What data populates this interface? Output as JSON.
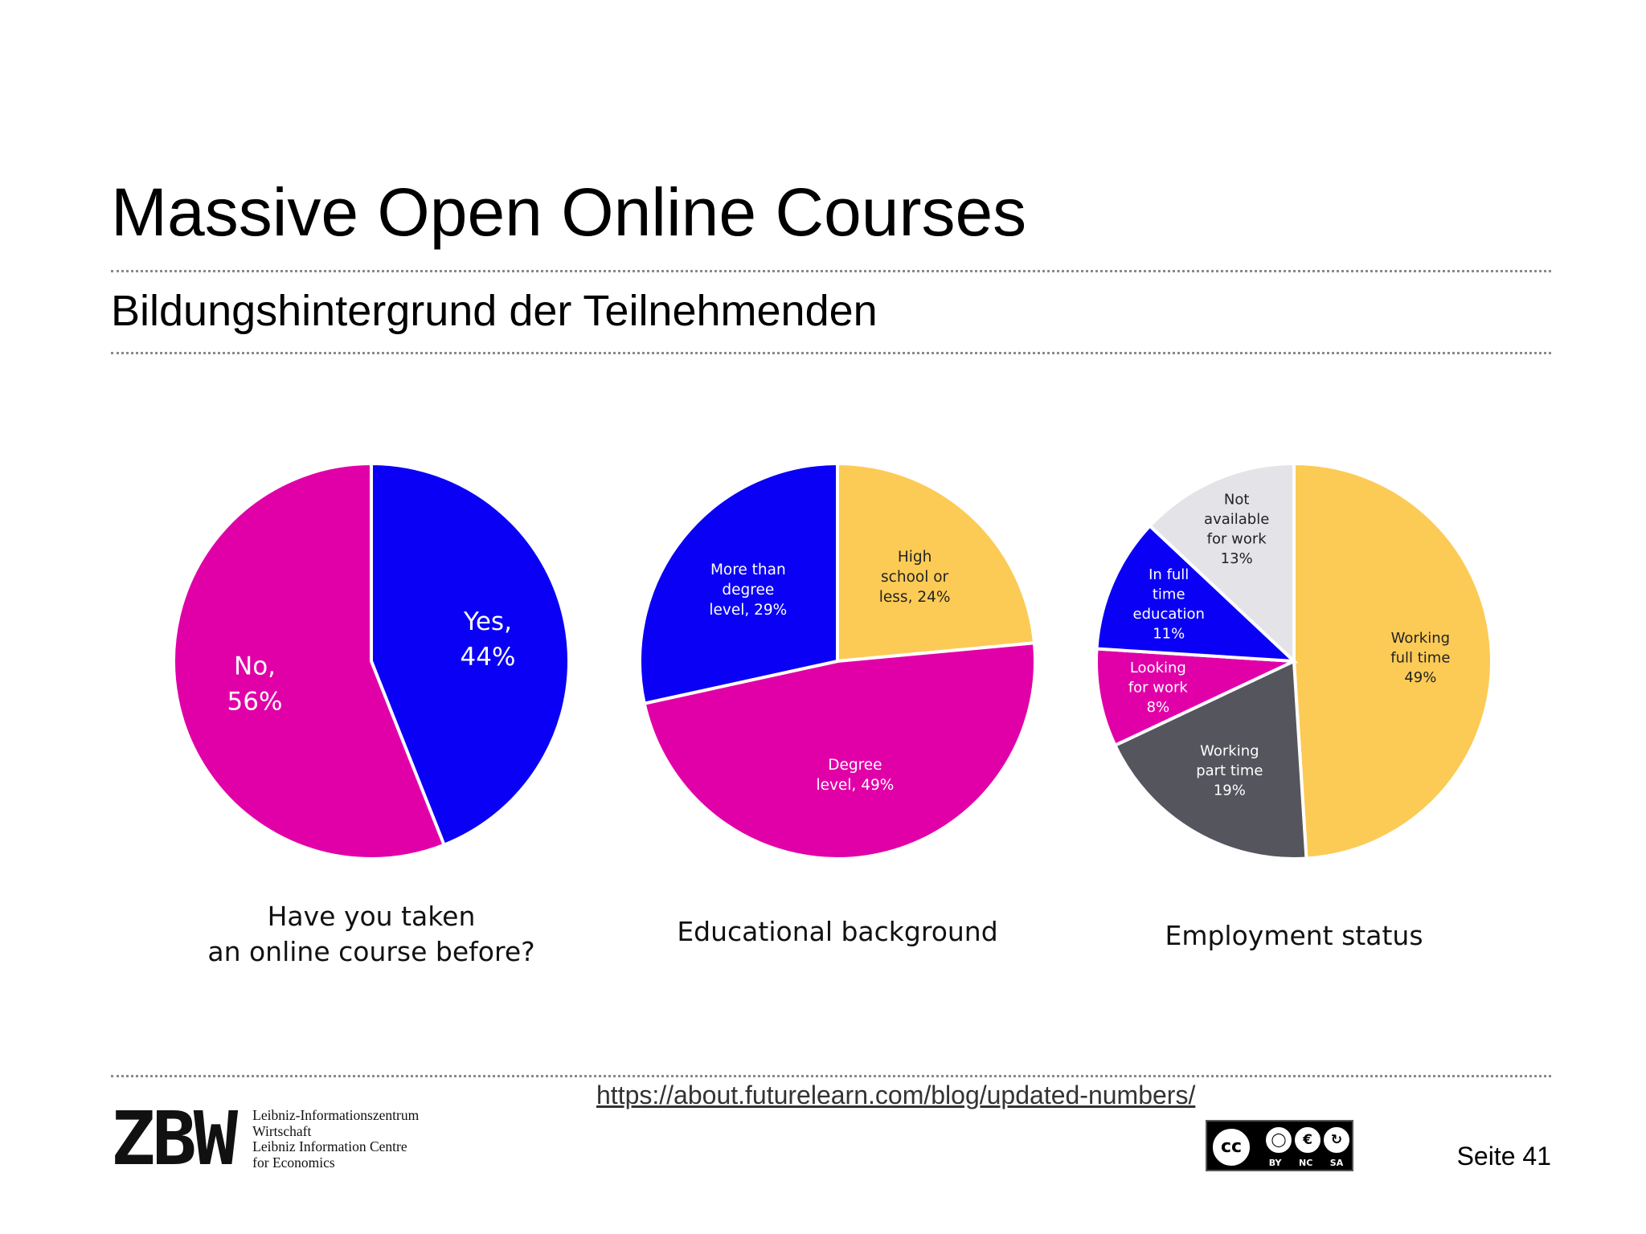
{
  "slide": {
    "title": "Massive Open Online Courses",
    "subtitle": "Bildungshintergrund der Teilnehmenden",
    "source_url": "https://about.futurelearn.com/blog/updated-numbers/",
    "page_label": "Seite 41"
  },
  "logo": {
    "mark": "ZBW",
    "lines": [
      "Leibniz-Informationszentrum",
      "Wirtschaft",
      "Leibniz Information Centre",
      "for Economics"
    ]
  },
  "license": {
    "main": "cc",
    "tags": [
      "BY",
      "NC",
      "SA"
    ],
    "icons": [
      "cc-icon",
      "attribution-icon",
      "noncommercial-icon",
      "sharealike-icon"
    ]
  },
  "colors": {
    "magenta": "#E100A8",
    "blue": "#0A00F5",
    "yellow": "#FCCB56",
    "light_gray": "#E4E4E8",
    "dark_gray": "#55555D"
  },
  "chart_data": [
    {
      "type": "pie",
      "caption": [
        "Have you taken",
        "an online course before?"
      ],
      "slices": [
        {
          "label": [
            "Yes,",
            "44%"
          ],
          "value": 44,
          "color": "#0A00F5"
        },
        {
          "label": [
            "No,",
            "56%"
          ],
          "value": 56,
          "color": "#E100A8"
        }
      ]
    },
    {
      "type": "pie",
      "caption": [
        "Educational background"
      ],
      "slices": [
        {
          "label": [
            "High",
            "school or",
            "less, 24%"
          ],
          "value": 24,
          "color": "#FCCB56"
        },
        {
          "label": [
            "Degree",
            "level, 49%"
          ],
          "value": 49,
          "color": "#E100A8"
        },
        {
          "label": [
            "More than",
            "degree",
            "level, 29%"
          ],
          "value": 29,
          "color": "#0A00F5"
        }
      ]
    },
    {
      "type": "pie",
      "caption": [
        "Employment status"
      ],
      "slices": [
        {
          "label": [
            "Working",
            "full time",
            "49%"
          ],
          "value": 49,
          "color": "#FCCB56"
        },
        {
          "label": [
            "Working",
            "part time",
            "19%"
          ],
          "value": 19,
          "color": "#55555D"
        },
        {
          "label": [
            "Looking",
            "for work",
            "8%"
          ],
          "value": 8,
          "color": "#E100A8"
        },
        {
          "label": [
            "In full",
            "time",
            "education",
            "11%"
          ],
          "value": 11,
          "color": "#0A00F5"
        },
        {
          "label": [
            "Not",
            "available",
            "for work",
            "13%"
          ],
          "value": 13,
          "color": "#E4E4E8"
        }
      ]
    }
  ]
}
